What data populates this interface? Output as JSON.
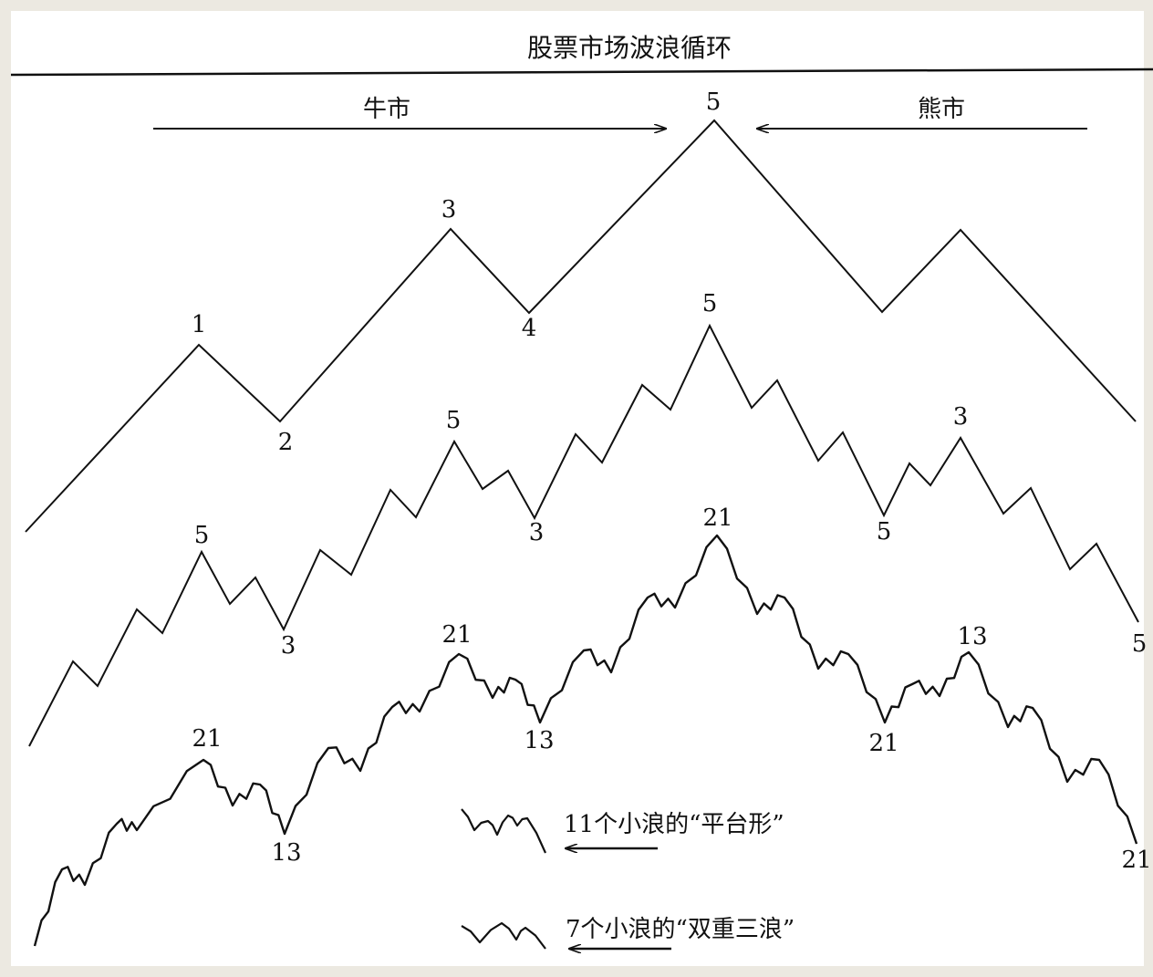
{
  "title": "股票市场波浪循环",
  "bull_label": "牛市",
  "bear_label": "熊市",
  "legend": {
    "flat": "11个小浪的“平台形”",
    "double_three": "7个小浪的“双重三浪”"
  },
  "wave_labels": {
    "top": [
      "1",
      "2",
      "3",
      "4",
      "5"
    ],
    "middle": [
      "5",
      "3",
      "5",
      "3",
      "5",
      "5",
      "3",
      "5"
    ],
    "bottom": [
      "21",
      "13",
      "21",
      "13",
      "21",
      "21",
      "13",
      "21"
    ]
  },
  "colors": {
    "ink": "#111111",
    "frame": "#ece9e1",
    "paper": "#ffffff"
  }
}
